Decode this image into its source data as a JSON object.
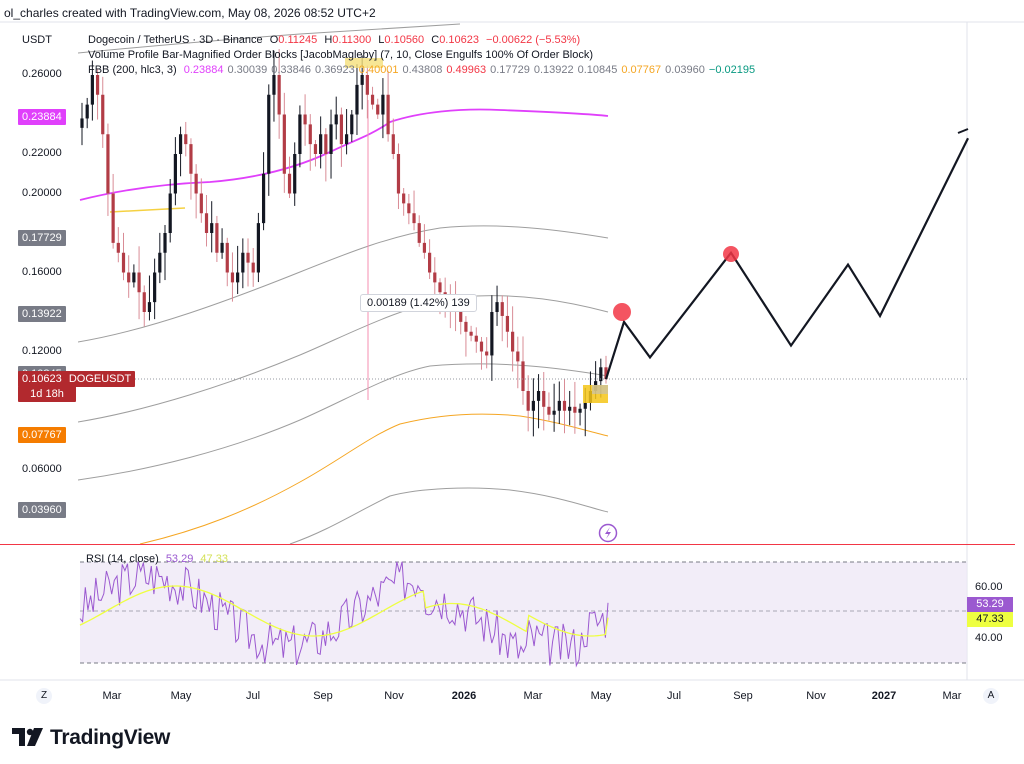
{
  "attribution": "ol_charles created with TradingView.com, May 08, 2026 08:52 UTC+2",
  "brand": "TradingView",
  "header": {
    "currency": "USDT",
    "symbol_line": {
      "name": "Dogecoin / TetherUS · 3D · Binance",
      "o_label": "O",
      "o": "0.11245",
      "h_label": "H",
      "h": "0.11300",
      "l_label": "L",
      "l": "0.10560",
      "c_label": "C",
      "c": "0.10623",
      "change": "−0.00622 (−5.53%)"
    },
    "indicator_line": "Volume Profile Bar-Magnified Order Blocks [JacobMagleby] (7, 10, Close Engulfs 100% Of Order Block)",
    "fbb_line": {
      "label": "FBB (200, hlc3, 3)",
      "values": [
        {
          "v": "0.23884",
          "color": "#e040fb"
        },
        {
          "v": "0.30039",
          "color": "#787b86"
        },
        {
          "v": "0.33846",
          "color": "#787b86"
        },
        {
          "v": "0.36923",
          "color": "#787b86"
        },
        {
          "v": "0.40001",
          "color": "#f5a623"
        },
        {
          "v": "0.43808",
          "color": "#787b86"
        },
        {
          "v": "0.49963",
          "color": "#f23645"
        },
        {
          "v": "0.17729",
          "color": "#787b86"
        },
        {
          "v": "0.13922",
          "color": "#787b86"
        },
        {
          "v": "0.10845",
          "color": "#787b86"
        },
        {
          "v": "0.07767",
          "color": "#f5a623"
        },
        {
          "v": "0.03960",
          "color": "#787b86"
        },
        {
          "v": "−0.02195",
          "color": "#089981"
        }
      ]
    }
  },
  "price_badges": [
    {
      "text": "0.23884",
      "price": 0.23884,
      "bg": "#e040fb",
      "fg": "#ffffff"
    },
    {
      "text": "0.17729",
      "price": 0.17729,
      "bg": "#787b86",
      "fg": "#ffffff"
    },
    {
      "text": "0.13922",
      "price": 0.13922,
      "bg": "#787b86",
      "fg": "#ffffff"
    },
    {
      "text": "0.10845",
      "price": 0.10845,
      "bg": "#787b86",
      "fg": "#ffffff"
    },
    {
      "text": "0.10623",
      "price": 0.10623,
      "bg": "#b2292e",
      "fg": "#ffffff",
      "extra": "DOGEUSDT",
      "sub": "1d 18h"
    },
    {
      "text": "0.07767",
      "price": 0.07767,
      "bg": "#f57c00",
      "fg": "#ffffff"
    },
    {
      "text": "0.03960",
      "price": 0.0396,
      "bg": "#787b86",
      "fg": "#ffffff"
    }
  ],
  "measure_label": "0.00189 (1.42%) 139",
  "rsi_header": {
    "label": "RSI (14, close)",
    "v1": "53.29",
    "v2": "47.33"
  },
  "rsi_badges": [
    {
      "text": "53.29",
      "bg": "#9b59d0",
      "fg": "#ffffff"
    },
    {
      "text": "47.33",
      "bg": "#eeff41",
      "fg": "#131722"
    }
  ],
  "axis_corner_left": "Z",
  "axis_corner_right": "A",
  "chart_data": {
    "type": "candlestick",
    "timeframe": "3D",
    "x_ticks": [
      "Mar",
      "May",
      "Jul",
      "Sep",
      "Nov",
      "2026",
      "Mar",
      "May",
      "Jul",
      "Sep",
      "Nov",
      "2027",
      "Mar"
    ],
    "y_ticks": [
      0.26,
      0.22,
      0.2,
      0.16,
      0.12,
      0.06
    ],
    "y_tick_labels": [
      "0.26000",
      "0.22000",
      "0.20000",
      "0.16000",
      "0.12000",
      "0.06000"
    ],
    "ylim": [
      0.02,
      0.27
    ],
    "current_price": 0.10623,
    "candle_closes": [
      0.238,
      0.245,
      0.26,
      0.25,
      0.23,
      0.2,
      0.175,
      0.17,
      0.16,
      0.155,
      0.16,
      0.15,
      0.14,
      0.145,
      0.16,
      0.17,
      0.18,
      0.2,
      0.22,
      0.23,
      0.225,
      0.21,
      0.2,
      0.19,
      0.18,
      0.185,
      0.17,
      0.175,
      0.16,
      0.155,
      0.16,
      0.17,
      0.165,
      0.16,
      0.185,
      0.21,
      0.25,
      0.26,
      0.24,
      0.21,
      0.2,
      0.22,
      0.24,
      0.235,
      0.225,
      0.22,
      0.23,
      0.22,
      0.235,
      0.24,
      0.225,
      0.23,
      0.24,
      0.255,
      0.26,
      0.25,
      0.245,
      0.24,
      0.25,
      0.23,
      0.22,
      0.2,
      0.195,
      0.19,
      0.185,
      0.175,
      0.17,
      0.16,
      0.155,
      0.15,
      0.148,
      0.145,
      0.14,
      0.135,
      0.13,
      0.128,
      0.125,
      0.12,
      0.118,
      0.14,
      0.145,
      0.138,
      0.13,
      0.12,
      0.115,
      0.1,
      0.09,
      0.095,
      0.1,
      0.092,
      0.088,
      0.09,
      0.095,
      0.09,
      0.092,
      0.089,
      0.091,
      0.094,
      0.1,
      0.105,
      0.112,
      0.106
    ],
    "projection_path": [
      {
        "date": "May 2026",
        "price": 0.106
      },
      {
        "date": "late May 2026",
        "price": 0.135
      },
      {
        "date": "Jun 2026",
        "price": 0.117
      },
      {
        "date": "Aug 2026",
        "price": 0.17
      },
      {
        "date": "Oct 2026",
        "price": 0.123
      },
      {
        "date": "Dec 2026",
        "price": 0.164
      },
      {
        "date": "Jan 2027",
        "price": 0.138
      },
      {
        "date": "Mar 2027",
        "price": 0.228
      }
    ],
    "rsi": {
      "period": 14,
      "last": 53.29,
      "ma_last": 47.33,
      "levels": [
        70,
        60,
        40,
        30
      ],
      "tick_labels": [
        "60.00",
        "40.00"
      ]
    }
  }
}
